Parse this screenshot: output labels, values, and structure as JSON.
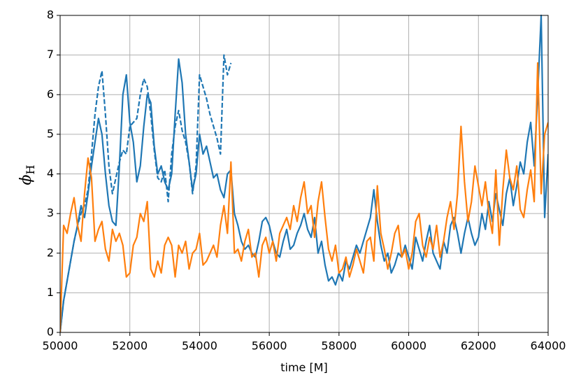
{
  "chart_data": {
    "type": "line",
    "x_label": "time [M]",
    "y_label": "ϕ",
    "y_label_sub": "H",
    "xlim": [
      50000,
      64000
    ],
    "ylim": [
      0,
      8
    ],
    "xticks": [
      50000,
      52000,
      54000,
      56000,
      58000,
      60000,
      62000,
      64000
    ],
    "yticks": [
      0,
      1,
      2,
      3,
      4,
      5,
      6,
      7,
      8
    ],
    "grid": true,
    "x": [
      50000,
      50100,
      50200,
      50300,
      50400,
      50500,
      50600,
      50700,
      50800,
      50900,
      51000,
      51100,
      51200,
      51300,
      51400,
      51500,
      51600,
      51700,
      51800,
      51900,
      52000,
      52100,
      52200,
      52300,
      52400,
      52500,
      52600,
      52700,
      52800,
      52900,
      53000,
      53100,
      53200,
      53300,
      53400,
      53500,
      53600,
      53700,
      53800,
      53900,
      54000,
      54100,
      54200,
      54300,
      54400,
      54500,
      54600,
      54700,
      54800,
      54900,
      55000,
      55100,
      55200,
      55300,
      55400,
      55500,
      55600,
      55700,
      55800,
      55900,
      56000,
      56100,
      56200,
      56300,
      56400,
      56500,
      56600,
      56700,
      56800,
      56900,
      57000,
      57100,
      57200,
      57300,
      57400,
      57500,
      57600,
      57700,
      57800,
      57900,
      58000,
      58100,
      58200,
      58300,
      58400,
      58500,
      58600,
      58700,
      58800,
      58900,
      59000,
      59100,
      59200,
      59300,
      59400,
      59500,
      59600,
      59700,
      59800,
      59900,
      60000,
      60100,
      60200,
      60300,
      60400,
      60500,
      60600,
      60700,
      60800,
      60900,
      61000,
      61100,
      61200,
      61300,
      61400,
      61500,
      61600,
      61700,
      61800,
      61900,
      62000,
      62100,
      62200,
      62300,
      62400,
      62500,
      62600,
      62700,
      62800,
      62900,
      63000,
      63100,
      63200,
      63300,
      63400,
      63500,
      63600,
      63700,
      63800,
      63900,
      64000
    ],
    "series": [
      {
        "color": "#1f77b4",
        "dashed": false,
        "values": [
          0,
          0.8,
          1.3,
          1.8,
          2.3,
          2.7,
          3.2,
          2.9,
          3.5,
          4.2,
          4.8,
          5.4,
          5.0,
          4.0,
          3.2,
          2.8,
          2.7,
          4.2,
          6.0,
          6.5,
          5.3,
          4.8,
          3.8,
          4.2,
          5.2,
          6.0,
          5.8,
          4.7,
          4.0,
          4.2,
          3.8,
          3.6,
          4.0,
          5.5,
          6.9,
          6.3,
          5.0,
          4.3,
          3.6,
          4.0,
          5.0,
          4.5,
          4.7,
          4.3,
          3.9,
          4.0,
          3.6,
          3.4,
          4.0,
          4.1,
          3.0,
          2.7,
          2.3,
          2.1,
          2.2,
          2.0,
          1.9,
          2.3,
          2.8,
          2.9,
          2.7,
          2.3,
          2.0,
          1.9,
          2.3,
          2.6,
          2.1,
          2.2,
          2.5,
          2.7,
          3.0,
          2.6,
          2.4,
          2.9,
          2.0,
          2.3,
          1.7,
          1.3,
          1.4,
          1.2,
          1.5,
          1.3,
          1.8,
          1.6,
          1.9,
          2.2,
          2.0,
          2.3,
          2.6,
          2.9,
          3.6,
          2.8,
          2.2,
          1.8,
          2.0,
          1.5,
          1.7,
          2.0,
          1.9,
          2.2,
          1.9,
          1.6,
          2.4,
          2.1,
          1.8,
          2.3,
          2.7,
          2.0,
          1.8,
          1.6,
          2.3,
          2.0,
          2.7,
          2.9,
          2.5,
          2.0,
          2.5,
          2.9,
          2.5,
          2.2,
          2.4,
          3.0,
          2.6,
          3.3,
          2.8,
          3.5,
          3.1,
          2.7,
          3.5,
          3.9,
          3.2,
          3.7,
          4.3,
          4.0,
          4.8,
          5.3,
          4.2,
          6.0,
          8.0,
          2.9,
          4.5
        ]
      },
      {
        "color": "#1f77b4",
        "dashed": true,
        "values": [
          0,
          0.8,
          1.3,
          1.8,
          2.3,
          2.7,
          3.0,
          3.2,
          3.6,
          4.5,
          5.5,
          6.2,
          6.6,
          5.5,
          4.2,
          3.5,
          3.9,
          4.3,
          4.6,
          4.5,
          5.2,
          5.3,
          5.4,
          6.0,
          6.4,
          6.2,
          5.5,
          4.6,
          3.9,
          3.8,
          4.1,
          3.3,
          4.5,
          5.2,
          5.6,
          5.1,
          4.8,
          4.3,
          3.5,
          4.2,
          6.5,
          6.2,
          5.9,
          5.5,
          5.2,
          4.9,
          4.5,
          7.0,
          6.5,
          6.8,
          null,
          null,
          null,
          null,
          null,
          null,
          null,
          null,
          null,
          null,
          null,
          null,
          null,
          null,
          null,
          null,
          null,
          null,
          null,
          null,
          null,
          null,
          null,
          null,
          null,
          null,
          null,
          null,
          null,
          null,
          null,
          null,
          null,
          null,
          null,
          null,
          null,
          null,
          null,
          null,
          null,
          null,
          null,
          null,
          null,
          null,
          null,
          null,
          null,
          null,
          null,
          null,
          null,
          null,
          null,
          null,
          null,
          null,
          null,
          null,
          null,
          null,
          null,
          null,
          null,
          null,
          null,
          null,
          null,
          null,
          null,
          null,
          null,
          null,
          null,
          null,
          null,
          null,
          null,
          null,
          null,
          null,
          null,
          null,
          null,
          null,
          null,
          null,
          null,
          null,
          null
        ]
      },
      {
        "color": "#ff7f0e",
        "dashed": false,
        "values": [
          0,
          2.7,
          2.5,
          3.0,
          3.4,
          2.7,
          2.3,
          3.5,
          4.4,
          3.9,
          2.3,
          2.6,
          2.8,
          2.1,
          1.8,
          2.6,
          2.3,
          2.5,
          2.2,
          1.4,
          1.5,
          2.2,
          2.4,
          3.0,
          2.8,
          3.3,
          1.6,
          1.4,
          1.8,
          1.5,
          2.2,
          2.4,
          2.2,
          1.4,
          2.2,
          2.0,
          2.3,
          1.6,
          2.0,
          2.1,
          2.5,
          1.7,
          1.8,
          2.0,
          2.2,
          1.9,
          2.7,
          3.2,
          2.5,
          4.3,
          2.0,
          2.1,
          1.8,
          2.3,
          2.6,
          1.9,
          2.0,
          1.4,
          2.2,
          2.4,
          2.0,
          2.3,
          1.8,
          2.5,
          2.7,
          2.9,
          2.6,
          3.2,
          2.8,
          3.4,
          3.8,
          3.0,
          3.2,
          2.4,
          3.3,
          3.8,
          2.9,
          2.1,
          1.8,
          2.2,
          1.5,
          1.6,
          1.9,
          1.4,
          1.7,
          2.1,
          1.8,
          1.5,
          2.3,
          2.4,
          1.8,
          3.7,
          2.5,
          2.1,
          1.6,
          2.0,
          2.5,
          2.7,
          1.9,
          2.1,
          1.6,
          2.0,
          2.8,
          3.0,
          2.2,
          1.9,
          2.4,
          2.1,
          2.7,
          1.9,
          2.3,
          2.9,
          3.3,
          2.6,
          3.5,
          5.2,
          3.8,
          2.8,
          3.3,
          4.2,
          3.7,
          3.2,
          3.8,
          3.0,
          2.5,
          4.1,
          2.2,
          3.6,
          4.6,
          3.9,
          3.6,
          4.2,
          3.1,
          2.9,
          3.6,
          4.1,
          3.3,
          6.8,
          3.5,
          5.0,
          5.3
        ]
      }
    ]
  }
}
